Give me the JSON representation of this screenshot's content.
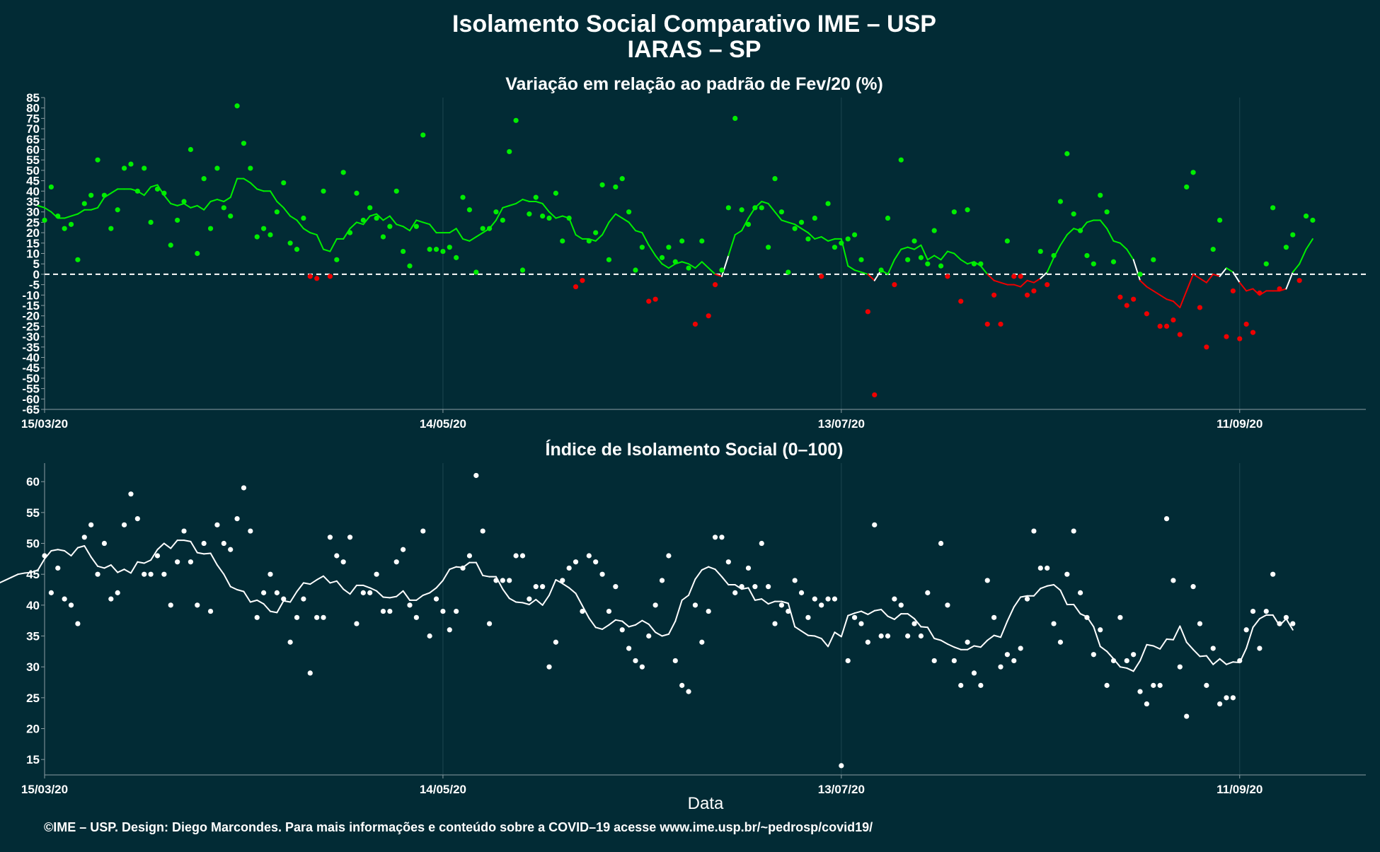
{
  "title": "Isolamento Social Comparativo IME – USP",
  "subtitle": "IARAS – SP",
  "xlabel": "Data",
  "caption": "©IME – USP. Design: Diego Marcondes. Para mais informações e conteúdo sobre a COVID–19 acesse www.ime.usp.br/~pedrosp/covid19/",
  "colors": {
    "background": "#022b35",
    "positive": "#00ee00",
    "negative": "#ee0000",
    "neutral": "#ffffff",
    "grid": "#1e4650"
  },
  "chart_data": [
    {
      "type": "scatter",
      "title": "Variação em relação ao padrão de Fev/20 (%)",
      "x_start": "2020-03-15",
      "x_end": "2020-09-30",
      "x_ticks": [
        "15/03/20",
        "14/05/20",
        "13/07/20",
        "11/09/20"
      ],
      "ylim": [
        -65,
        85
      ],
      "y_ticks": [
        -65,
        -60,
        -55,
        -50,
        -45,
        -40,
        -35,
        -30,
        -25,
        -20,
        -15,
        -10,
        -5,
        0,
        5,
        10,
        15,
        20,
        25,
        30,
        35,
        40,
        45,
        50,
        55,
        60,
        65,
        70,
        75,
        80,
        85
      ],
      "reference_line": 0,
      "series": [
        {
          "kind": "points",
          "values": [
            26,
            42,
            28,
            22,
            24,
            7,
            34,
            38,
            55,
            38,
            22,
            31,
            51,
            53,
            40,
            51,
            25,
            41,
            39,
            14,
            26,
            35,
            60,
            10,
            46,
            22,
            51,
            32,
            28,
            81,
            63,
            51,
            18,
            22,
            19,
            30,
            44,
            15,
            12,
            27,
            -1,
            -2,
            40,
            -1,
            7,
            49,
            20,
            39,
            26,
            32,
            27,
            18,
            23,
            40,
            11,
            4,
            23,
            67,
            12,
            12,
            11,
            13,
            8,
            37,
            31,
            1,
            22,
            22,
            30,
            26,
            59,
            74,
            2,
            29,
            37,
            28,
            27,
            39,
            16,
            27,
            -6,
            -3,
            16,
            20,
            43,
            7,
            42,
            46,
            30,
            2,
            13,
            -13,
            -12,
            8,
            13,
            6,
            16,
            3,
            -24,
            16,
            -20,
            -5,
            2,
            32,
            75,
            31,
            24,
            32,
            32,
            13,
            46,
            30,
            1,
            22,
            25,
            17,
            27,
            -1,
            34,
            13,
            15,
            17,
            19,
            7,
            -18,
            -58,
            2,
            27,
            -5,
            55,
            7,
            16,
            8,
            5,
            21,
            4,
            -1,
            30,
            -13,
            31,
            5,
            5,
            -24,
            -10,
            -24,
            16,
            -1,
            -1,
            -10,
            -8,
            11,
            -5,
            9,
            35,
            58,
            29,
            21,
            9,
            5,
            38,
            30,
            6,
            -11,
            -15,
            -12,
            0,
            -19,
            7,
            -25,
            -25,
            -22,
            -29,
            42,
            49,
            -16,
            -35,
            12,
            26,
            -30,
            -8,
            -31,
            -24,
            -28,
            -9,
            5,
            32,
            -7,
            13,
            19,
            -3,
            28,
            26
          ]
        },
        {
          "kind": "moving_average",
          "values": [
            33,
            32,
            30,
            27,
            27,
            28,
            29,
            31,
            31,
            32,
            37,
            39,
            41,
            41,
            41,
            40,
            38,
            42,
            43,
            38,
            34,
            33,
            34,
            32,
            33,
            31,
            35,
            36,
            35,
            37,
            46,
            46,
            44,
            41,
            40,
            40,
            35,
            32,
            28,
            26,
            22,
            20,
            19,
            12,
            11,
            17,
            17,
            22,
            25,
            24,
            28,
            29,
            26,
            28,
            24,
            23,
            21,
            26,
            25,
            24,
            20,
            20,
            20,
            22,
            17,
            16,
            18,
            20,
            22,
            26,
            32,
            33,
            34,
            36,
            35,
            35,
            34,
            30,
            27,
            28,
            27,
            19,
            17,
            17,
            16,
            19,
            25,
            29,
            27,
            25,
            21,
            20,
            14,
            9,
            5,
            3,
            5,
            6,
            5,
            3,
            6,
            3,
            0,
            -1,
            9,
            19,
            21,
            27,
            32,
            35,
            34,
            30,
            26,
            25,
            24,
            22,
            20,
            17,
            18,
            16,
            17,
            17,
            4,
            2,
            1,
            0,
            -3,
            2,
            0,
            7,
            12,
            13,
            12,
            14,
            7,
            9,
            7,
            11,
            10,
            7,
            5,
            6,
            4,
            0,
            -3,
            -4,
            -5,
            -5,
            -6,
            -3,
            -4,
            -2,
            1,
            8,
            14,
            19,
            22,
            21,
            25,
            26,
            26,
            22,
            16,
            15,
            12,
            7,
            -3,
            -6,
            -8,
            -10,
            -12,
            -13,
            -16,
            -8,
            0,
            -2,
            -4,
            0,
            -1,
            3,
            1,
            -4,
            -8,
            -7,
            -10,
            -8,
            -8,
            -8,
            -7,
            1,
            5,
            12,
            17
          ]
        }
      ]
    },
    {
      "type": "scatter",
      "title": "Índice de Isolamento Social (0–100)",
      "x_start": "2020-03-15",
      "x_end": "2020-09-30",
      "x_ticks": [
        "15/03/20",
        "14/05/20",
        "13/07/20",
        "11/09/20"
      ],
      "ylim": [
        12.5,
        63
      ],
      "y_ticks": [
        15,
        20,
        25,
        30,
        35,
        40,
        45,
        50,
        55,
        60
      ],
      "series": [
        {
          "kind": "points",
          "values": [
            48,
            42,
            46,
            41,
            40,
            37,
            51,
            53,
            45,
            50,
            41,
            42,
            53,
            58,
            54,
            45,
            45,
            48,
            45,
            40,
            47,
            52,
            47,
            40,
            50,
            39,
            53,
            50,
            49,
            54,
            59,
            52,
            38,
            42,
            45,
            42,
            41,
            34,
            38,
            41,
            29,
            38,
            38,
            51,
            48,
            47,
            51,
            37,
            42,
            42,
            45,
            39,
            39,
            47,
            49,
            40,
            38,
            52,
            35,
            41,
            39,
            36,
            39,
            46,
            48,
            61,
            52,
            37,
            44,
            44,
            44,
            48,
            48,
            41,
            43,
            43,
            30,
            34,
            44,
            46,
            47,
            39,
            48,
            47,
            45,
            39,
            43,
            36,
            33,
            31,
            30,
            35,
            40,
            44,
            48,
            31,
            27,
            26,
            40,
            34,
            39,
            51,
            51,
            47,
            42,
            43,
            46,
            43,
            50,
            43,
            37,
            40,
            39,
            44,
            42,
            38,
            41,
            40,
            41,
            41,
            14,
            31,
            38,
            37,
            34,
            53,
            35,
            35,
            41,
            40,
            35,
            37,
            35,
            42,
            31,
            50,
            40,
            31,
            27,
            34,
            29,
            27,
            44,
            38,
            30,
            32,
            31,
            33,
            41,
            52,
            46,
            46,
            37,
            34,
            45,
            52,
            42,
            38,
            32,
            36,
            27,
            31,
            38,
            31,
            32,
            26,
            24,
            27,
            27,
            54,
            44,
            30,
            22,
            43,
            37,
            27,
            33,
            24,
            25,
            25,
            31,
            36,
            39,
            33,
            39,
            45,
            37,
            38,
            37
          ]
        },
        {
          "kind": "moving_average",
          "values": [
            43.5,
            44,
            44.5,
            45,
            45.2,
            45.3,
            45.7,
            47.5,
            48.8,
            49,
            48.8,
            48,
            49.3,
            49.6,
            47.8,
            46.3,
            46,
            46.5,
            45.3,
            45.8,
            45.2,
            47,
            46.8,
            47.3,
            49,
            50,
            49.2,
            50.5,
            50.5,
            50.3,
            48.5,
            48.3,
            48.4,
            46.5,
            45,
            43,
            42.5,
            42.2,
            40.5,
            40.8,
            40.2,
            39,
            38.8,
            40.7,
            40.5,
            42.2,
            43.6,
            43.4,
            44.1,
            44.7,
            43.6,
            43.9,
            42.6,
            41.8,
            43.2,
            43.2,
            42.8,
            42.3,
            41.3,
            41.2,
            41.4,
            42.3,
            40.8,
            40.8,
            41.6,
            42,
            42.8,
            44,
            45.8,
            46.2,
            46.1,
            46.9,
            46.9,
            44.8,
            44.6,
            44.6,
            42.6,
            41.1,
            40.5,
            40.4,
            40.1,
            40.9,
            40,
            41.6,
            44.1,
            43.5,
            42.8,
            41.9,
            39.9,
            37.9,
            36.4,
            36.1,
            36.8,
            37.6,
            37.4,
            36.5,
            36.8,
            37.5,
            36.9,
            35.6,
            35,
            35.3,
            37.4,
            40.8,
            41.6,
            44.2,
            45.7,
            46.2,
            45.8,
            44.6,
            43.3,
            43.3,
            42.6,
            42.8,
            40.8,
            41,
            40.2,
            40.6,
            40.6,
            40.3,
            36.5,
            35.8,
            35.1,
            35,
            34.6,
            33.3,
            35.6,
            34.9,
            38.3,
            38.7,
            39,
            38.5,
            39.1,
            39.3,
            38.2,
            37.7,
            38.6,
            38.6,
            37.8,
            36.5,
            36.4,
            34.6,
            34.3,
            33.7,
            33.2,
            32.8,
            32.8,
            33.4,
            33.2,
            34.3,
            35.1,
            34.8,
            37.4,
            39.7,
            41.3,
            41.5,
            41.5,
            42.7,
            43.1,
            43.3,
            42.4,
            40.1,
            40.1,
            38.6,
            38.1,
            36.5,
            33.3,
            32.5,
            31.3,
            30,
            29.8,
            29.3,
            31,
            33.6,
            33.4,
            32.9,
            34.5,
            34.4,
            36.6,
            34,
            32.8,
            31.7,
            31.8,
            30.4,
            31.3,
            30.4,
            30.8,
            30.7,
            33,
            36.4,
            37.8,
            38.4,
            38.4,
            36.7,
            37.8,
            36
          ]
        }
      ]
    }
  ]
}
